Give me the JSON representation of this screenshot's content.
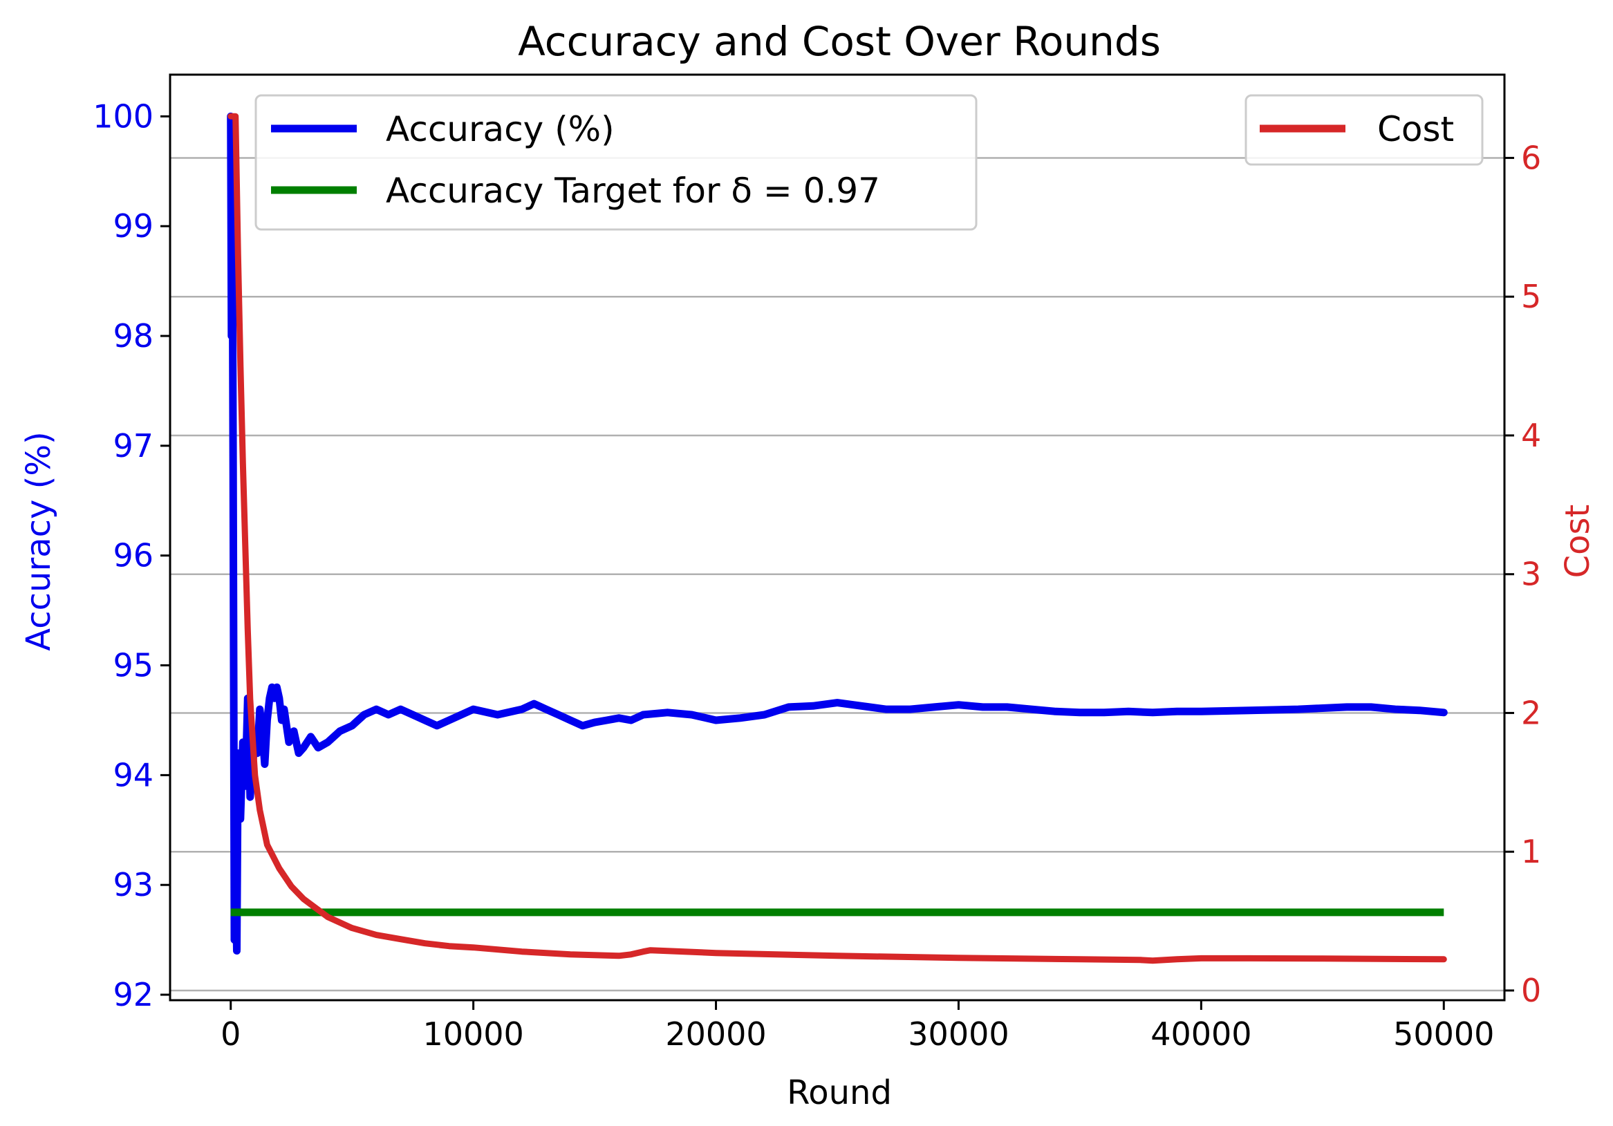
{
  "chart_data": {
    "type": "line",
    "title": "Accuracy and Cost Over Rounds",
    "xlabel": "Round",
    "ylabel_left": "Accuracy (%)",
    "ylabel_right": "Cost",
    "xlim": [
      -2500,
      52500
    ],
    "ylim_left": [
      91.95,
      100.38
    ],
    "ylim_right": [
      -0.07,
      6.6
    ],
    "x_ticks": [
      0,
      10000,
      20000,
      30000,
      40000,
      50000
    ],
    "y_left_ticks": [
      92,
      93,
      94,
      95,
      96,
      97,
      98,
      99,
      100
    ],
    "y_right_ticks": [
      0,
      1,
      2,
      3,
      4,
      5,
      6
    ],
    "grid": "right-axis horizontal",
    "colors": {
      "accuracy": "#0000ee",
      "target": "#007f00",
      "cost": "#d62728",
      "left_axis": "#0000ee",
      "right_axis": "#d62728"
    },
    "legend_left": [
      "Accuracy (%)",
      "Accuracy Target for δ = 0.97"
    ],
    "legend_right": [
      "Cost"
    ],
    "series": [
      {
        "name": "Accuracy (%)",
        "axis": "left",
        "x": [
          0,
          30,
          60,
          100,
          150,
          200,
          250,
          300,
          400,
          500,
          600,
          700,
          800,
          900,
          1000,
          1100,
          1200,
          1300,
          1400,
          1500,
          1600,
          1700,
          1800,
          1900,
          2000,
          2100,
          2200,
          2400,
          2600,
          2800,
          3000,
          3300,
          3600,
          4000,
          4500,
          5000,
          5500,
          6000,
          6500,
          7000,
          7500,
          8000,
          8500,
          9000,
          10000,
          11000,
          12000,
          12500,
          13000,
          13500,
          14000,
          14500,
          15000,
          15500,
          16000,
          16500,
          17000,
          18000,
          19000,
          20000,
          21000,
          22000,
          23000,
          24000,
          25000,
          26000,
          27000,
          28000,
          29000,
          30000,
          31000,
          32000,
          33000,
          34000,
          35000,
          36000,
          37000,
          38000,
          39000,
          40000,
          42000,
          44000,
          46000,
          47000,
          48000,
          49000,
          50000
        ],
        "y": [
          100.0,
          98.0,
          99.5,
          96.8,
          92.5,
          93.2,
          92.4,
          94.2,
          93.6,
          94.3,
          93.9,
          94.7,
          93.8,
          94.1,
          94.3,
          94.2,
          94.6,
          94.4,
          94.1,
          94.5,
          94.7,
          94.8,
          94.7,
          94.8,
          94.7,
          94.5,
          94.6,
          94.3,
          94.4,
          94.2,
          94.25,
          94.35,
          94.25,
          94.3,
          94.4,
          94.45,
          94.55,
          94.6,
          94.55,
          94.6,
          94.55,
          94.5,
          94.45,
          94.5,
          94.6,
          94.55,
          94.6,
          94.65,
          94.6,
          94.55,
          94.5,
          94.45,
          94.48,
          94.5,
          94.52,
          94.5,
          94.55,
          94.57,
          94.55,
          94.5,
          94.52,
          94.55,
          94.62,
          94.63,
          94.66,
          94.63,
          94.6,
          94.6,
          94.62,
          94.64,
          94.62,
          94.62,
          94.6,
          94.58,
          94.57,
          94.57,
          94.58,
          94.57,
          94.58,
          94.58,
          94.59,
          94.6,
          94.62,
          94.62,
          94.6,
          94.59,
          94.57
        ]
      },
      {
        "name": "Accuracy Target for δ = 0.97",
        "axis": "left",
        "x": [
          0,
          50000
        ],
        "y": [
          92.75,
          92.75
        ]
      },
      {
        "name": "Cost",
        "axis": "right",
        "x": [
          0,
          200,
          300,
          400,
          500,
          600,
          700,
          800,
          1000,
          1200,
          1500,
          2000,
          2500,
          3000,
          4000,
          5000,
          6000,
          7000,
          8000,
          9000,
          10000,
          12000,
          14000,
          16000,
          16500,
          17000,
          17300,
          18000,
          20000,
          25000,
          30000,
          35000,
          37500,
          38000,
          39000,
          40000,
          42000,
          45000,
          50000
        ],
        "y": [
          6.3,
          6.3,
          5.3,
          4.5,
          3.8,
          3.2,
          2.6,
          2.1,
          1.55,
          1.3,
          1.05,
          0.88,
          0.75,
          0.66,
          0.53,
          0.45,
          0.4,
          0.37,
          0.34,
          0.32,
          0.31,
          0.28,
          0.26,
          0.25,
          0.26,
          0.28,
          0.29,
          0.285,
          0.27,
          0.25,
          0.235,
          0.225,
          0.22,
          0.215,
          0.225,
          0.232,
          0.232,
          0.23,
          0.225
        ]
      }
    ]
  }
}
